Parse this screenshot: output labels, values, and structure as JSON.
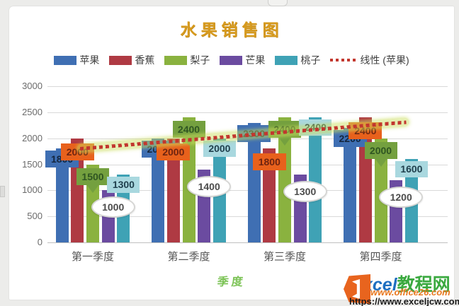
{
  "title": {
    "text": "水果销售图",
    "color": "#d79b1f"
  },
  "chart_data": {
    "type": "bar",
    "title": "水果销售图",
    "categories": [
      "第一季度",
      "第二季度",
      "第三季度",
      "第四季度"
    ],
    "series": [
      {
        "name": "苹果",
        "color": "#3f6fb3",
        "label_style": "blue-callout",
        "values": [
          1800,
          2000,
          2300,
          2200
        ]
      },
      {
        "name": "香蕉",
        "color": "#af3a43",
        "label_style": "orange-callout",
        "label_color": "#e8611c",
        "values": [
          2000,
          2000,
          1800,
          2400
        ]
      },
      {
        "name": "梨子",
        "color": "#8ab23f",
        "label_style": "green-callout",
        "label_color": "#74a03f",
        "values": [
          1500,
          2400,
          2400,
          2000
        ]
      },
      {
        "name": "芒果",
        "color": "#6b4ba0",
        "label_style": "white-ellipse",
        "values": [
          1000,
          1400,
          1300,
          1200
        ]
      },
      {
        "name": "桃子",
        "color": "#3fa2b5",
        "label_style": "teal-callout",
        "label_color": "#a9d8df",
        "values": [
          1300,
          2000,
          2400,
          1600
        ]
      }
    ],
    "trendline": {
      "name": "线性 (苹果)",
      "source_series": "苹果",
      "color": "#c2372e",
      "glow_color": "#cbde5e"
    },
    "xlabel": "季度",
    "ylabel": "",
    "ylim": [
      0,
      3000
    ],
    "yticks": [
      0,
      500,
      1000,
      1500,
      2000,
      2500,
      3000
    ],
    "grid": true,
    "legend_position": "top"
  },
  "axis_title_x": "季度",
  "watermark": {
    "logo": "office-logo-icon",
    "name_latin": "xcel",
    "name_cjk": "教程网",
    "url_overlay": "www.office26.com",
    "url_main": "https://www.exceljcw.com"
  }
}
